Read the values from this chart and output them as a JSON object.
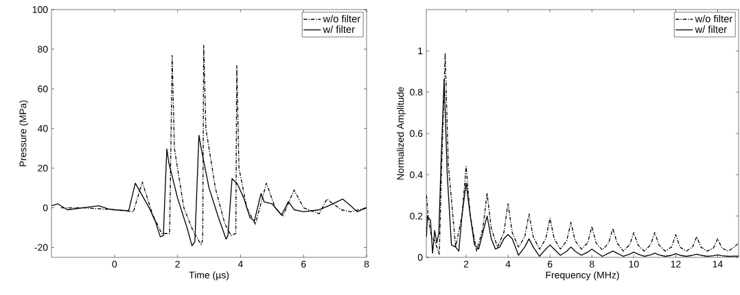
{
  "chart_data": [
    {
      "type": "line",
      "xlabel": "Time (µs)",
      "ylabel": "Pressure (MPa)",
      "xlim": [
        -2,
        8
      ],
      "ylim": [
        -25,
        100
      ],
      "xticks": [
        0,
        2,
        4,
        6,
        8
      ],
      "yticks": [
        -20,
        0,
        20,
        40,
        60,
        80,
        100
      ],
      "legend": "top right",
      "series": [
        {
          "name": "w/o filter",
          "color": "#000000",
          "line_style": "dashdot",
          "x": [
            -1.7,
            -1,
            0,
            0.6,
            0.88,
            1.2,
            1.5,
            1.75,
            1.83,
            1.9,
            2.2,
            2.5,
            2.75,
            2.8,
            2.83,
            2.9,
            3.2,
            3.5,
            3.7,
            3.85,
            3.88,
            3.95,
            4.2,
            4.47,
            4.82,
            5.1,
            5.35,
            5.7,
            6.0,
            6.5,
            6.74,
            7.2,
            7.5,
            8
          ],
          "values": [
            0,
            0,
            -1,
            -2,
            13,
            -3,
            -13,
            -13,
            76.9,
            30,
            0,
            -12,
            -18.6,
            -16,
            82,
            40,
            10,
            -8,
            -14,
            -13,
            71.7,
            20,
            0,
            -8.3,
            12.4,
            0,
            -4,
            9,
            0,
            -3,
            4.4,
            -1,
            -2,
            0
          ]
        },
        {
          "name": "w/ filter",
          "color": "#000000",
          "line_style": "solid",
          "x": [
            -2,
            -1.8,
            -1.5,
            -1,
            -0.5,
            -0.2,
            0,
            0.45,
            0.66,
            1.1,
            1.3,
            1.45,
            1.55,
            1.66,
            1.72,
            2.0,
            2.3,
            2.46,
            2.55,
            2.68,
            2.75,
            3.0,
            3.3,
            3.54,
            3.6,
            3.73,
            3.9,
            4.1,
            4.3,
            4.44,
            4.65,
            4.75,
            5.0,
            5.3,
            5.52,
            5.7,
            6.0,
            6.5,
            6.8,
            7.24,
            7.5,
            7.7,
            8
          ],
          "values": [
            1,
            2,
            -1,
            0,
            1,
            -0.5,
            -1,
            -1.5,
            12.4,
            0,
            -7,
            -14.6,
            -14,
            29.7,
            23,
            5,
            -10,
            -19.2,
            -17,
            36.6,
            30,
            10,
            -5,
            -15.8,
            -14,
            14.7,
            12,
            5,
            -5,
            -6.6,
            7.2,
            3,
            2,
            -3.7,
            3.2,
            -1,
            -2,
            -1,
            1,
            4.4,
            1,
            -2,
            0
          ]
        }
      ]
    },
    {
      "type": "line",
      "xlabel": "Frequency (MHz)",
      "ylabel": "Normalized Amplitude",
      "xlim": [
        0.1,
        15
      ],
      "ylim": [
        0,
        1.2
      ],
      "xticks": [
        2,
        4,
        6,
        8,
        10,
        12,
        14
      ],
      "yticks": [
        0,
        0.2,
        0.4,
        0.6,
        0.8,
        1
      ],
      "legend": "top right",
      "series": [
        {
          "name": "w/o filter",
          "color": "#000000",
          "line_style": "dashdot",
          "x": [
            0.11,
            0.2,
            0.35,
            0.5,
            0.72,
            0.85,
            1.0,
            1.15,
            1.5,
            1.8,
            2.0,
            2.2,
            2.5,
            2.8,
            3.0,
            3.2,
            3.5,
            3.8,
            4.0,
            4.2,
            4.5,
            4.8,
            5.0,
            5.2,
            5.5,
            5.8,
            6.0,
            6.2,
            6.5,
            6.8,
            7.0,
            7.2,
            7.5,
            7.8,
            8.0,
            8.2,
            8.5,
            8.8,
            9.0,
            9.2,
            9.5,
            9.8,
            10.0,
            10.2,
            10.5,
            10.8,
            11.0,
            11.2,
            11.5,
            11.8,
            12.0,
            12.2,
            12.5,
            12.8,
            13.0,
            13.2,
            13.5,
            13.8,
            14.0,
            14.2,
            14.5,
            14.8,
            15.0
          ],
          "values": [
            0.3,
            0.18,
            0.1,
            0.08,
            0.015,
            0.5,
            0.99,
            0.45,
            0.05,
            0.2,
            0.44,
            0.2,
            0.03,
            0.14,
            0.31,
            0.14,
            0.05,
            0.12,
            0.26,
            0.12,
            0.05,
            0.1,
            0.21,
            0.1,
            0.04,
            0.09,
            0.19,
            0.09,
            0.04,
            0.08,
            0.17,
            0.08,
            0.04,
            0.07,
            0.15,
            0.07,
            0.035,
            0.07,
            0.14,
            0.07,
            0.03,
            0.06,
            0.12,
            0.06,
            0.03,
            0.06,
            0.12,
            0.06,
            0.03,
            0.05,
            0.11,
            0.05,
            0.03,
            0.05,
            0.1,
            0.05,
            0.03,
            0.045,
            0.09,
            0.045,
            0.03,
            0.05,
            0.07
          ]
        },
        {
          "name": "w/ filter",
          "color": "#000000",
          "line_style": "solid",
          "x": [
            0.11,
            0.15,
            0.3,
            0.4,
            0.5,
            0.6,
            0.7,
            0.8,
            0.95,
            1.1,
            1.3,
            1.5,
            1.65,
            1.8,
            2.0,
            2.2,
            2.4,
            2.6,
            2.8,
            3.0,
            3.2,
            3.4,
            3.6,
            3.8,
            4.0,
            4.2,
            4.5,
            4.8,
            5.0,
            5.2,
            5.5,
            5.8,
            6.0,
            6.2,
            6.5,
            6.8,
            7.0,
            7.2,
            7.5,
            7.8,
            8.0,
            8.2,
            8.5,
            8.8,
            9.0,
            9.2,
            9.5,
            9.8,
            10.0,
            10.2,
            10.5,
            10.8,
            11.0,
            11.2,
            11.5,
            11.8,
            12.0,
            12.2,
            12.5,
            12.8,
            13.0,
            13.2,
            13.5,
            13.8,
            14.0,
            14.2,
            14.5,
            15.0
          ],
          "values": [
            0.1,
            0.2,
            0.18,
            0.02,
            0.13,
            0.07,
            0.12,
            0.45,
            0.86,
            0.4,
            0.06,
            0.05,
            0.03,
            0.2,
            0.36,
            0.2,
            0.06,
            0.04,
            0.12,
            0.2,
            0.09,
            0.04,
            0.05,
            0.09,
            0.11,
            0.09,
            0.01,
            0.05,
            0.09,
            0.05,
            0.005,
            0.04,
            0.06,
            0.04,
            0.01,
            0.03,
            0.05,
            0.03,
            0.01,
            0.025,
            0.04,
            0.025,
            0.005,
            0.02,
            0.03,
            0.02,
            0.005,
            0.015,
            0.025,
            0.015,
            0.005,
            0.012,
            0.02,
            0.012,
            0.005,
            0.01,
            0.018,
            0.01,
            0.005,
            0.01,
            0.015,
            0.01,
            0.005,
            0.008,
            0.012,
            0.008,
            0.005,
            0.006
          ]
        }
      ]
    }
  ]
}
